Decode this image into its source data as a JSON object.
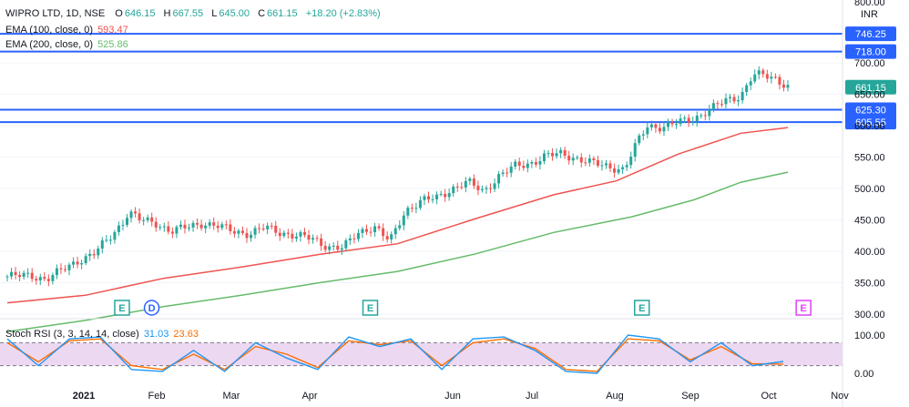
{
  "legend": {
    "symbol": "WIPRO LTD, 1D, NSE",
    "o_label": "O",
    "o_value": "646.15",
    "h_label": "H",
    "h_value": "667.55",
    "l_label": "L",
    "l_value": "645.00",
    "c_label": "C",
    "c_value": "661.15",
    "change": "+18.20 (+2.83%)",
    "ema100_label": "EMA (100, close, 0)",
    "ema100_value": "593.47",
    "ema200_label": "EMA (200, close, 0)",
    "ema200_value": "525.86",
    "stoch_label": "Stoch RSI (3, 3, 14, 14, close)",
    "stoch_k": "31.03",
    "stoch_d": "23.63"
  },
  "currency": "INR",
  "colors": {
    "up": "#26a69a",
    "down": "#ef5350",
    "level": "#2962ff",
    "ema100": "#ef5350",
    "ema200": "#66bb6a",
    "stoch_k": "#2196f3",
    "stoch_d": "#ff6d00",
    "stoch_band": "#e1bee7",
    "earnings": "#26a69a",
    "dividend": "#2962ff",
    "earnings_future": "#e040fb"
  },
  "chart_data": {
    "type": "candlestick",
    "price_axis": {
      "ticks": [
        300,
        350,
        400,
        450,
        500,
        550,
        600,
        650,
        700,
        800
      ],
      "tick_labels": [
        "300.00",
        "350.00",
        "400.00",
        "450.00",
        "500.00",
        "550.00",
        "600.00",
        "650.00",
        "700.00",
        "800.00"
      ],
      "ylim": [
        295,
        810
      ]
    },
    "time_axis": {
      "labels": [
        "2021",
        "Feb",
        "Mar",
        "Apr",
        "Jun",
        "Jul",
        "Aug",
        "Sep",
        "Oct",
        "Nov"
      ]
    },
    "levels": [
      {
        "label": "746.25",
        "value": 746.25
      },
      {
        "label": "718.00",
        "value": 718.0
      },
      {
        "label": "625.30",
        "value": 625.3
      },
      {
        "label": "605.55",
        "value": 605.55
      }
    ],
    "last_price": {
      "label": "661.15",
      "value": 661.15
    },
    "close_path": [
      [
        0,
        360
      ],
      [
        0.03,
        362
      ],
      [
        0.05,
        355
      ],
      [
        0.07,
        370
      ],
      [
        0.09,
        385
      ],
      [
        0.11,
        395
      ],
      [
        0.13,
        420
      ],
      [
        0.15,
        450
      ],
      [
        0.155,
        463
      ],
      [
        0.17,
        450
      ],
      [
        0.19,
        445
      ],
      [
        0.21,
        432
      ],
      [
        0.23,
        438
      ],
      [
        0.25,
        445
      ],
      [
        0.27,
        440
      ],
      [
        0.29,
        432
      ],
      [
        0.31,
        428
      ],
      [
        0.33,
        438
      ],
      [
        0.35,
        430
      ],
      [
        0.37,
        425
      ],
      [
        0.39,
        420
      ],
      [
        0.41,
        408
      ],
      [
        0.43,
        405
      ],
      [
        0.45,
        430
      ],
      [
        0.47,
        440
      ],
      [
        0.49,
        415
      ],
      [
        0.51,
        465
      ],
      [
        0.53,
        480
      ],
      [
        0.55,
        485
      ],
      [
        0.57,
        500
      ],
      [
        0.59,
        510
      ],
      [
        0.61,
        495
      ],
      [
        0.63,
        520
      ],
      [
        0.65,
        535
      ],
      [
        0.67,
        540
      ],
      [
        0.69,
        552
      ],
      [
        0.71,
        555
      ],
      [
        0.73,
        548
      ],
      [
        0.75,
        540
      ],
      [
        0.77,
        535
      ],
      [
        0.79,
        530
      ],
      [
        0.81,
        580
      ],
      [
        0.82,
        600
      ],
      [
        0.84,
        598
      ],
      [
        0.86,
        605
      ],
      [
        0.88,
        612
      ],
      [
        0.9,
        625
      ],
      [
        0.92,
        640
      ],
      [
        0.94,
        648
      ],
      [
        0.955,
        680
      ],
      [
        0.97,
        680
      ],
      [
        0.985,
        675
      ],
      [
        1.0,
        662
      ]
    ],
    "ema100_path": [
      [
        0,
        318
      ],
      [
        0.1,
        330
      ],
      [
        0.2,
        357
      ],
      [
        0.3,
        375
      ],
      [
        0.4,
        395
      ],
      [
        0.5,
        412
      ],
      [
        0.6,
        452
      ],
      [
        0.7,
        490
      ],
      [
        0.78,
        512
      ],
      [
        0.86,
        555
      ],
      [
        0.94,
        588
      ],
      [
        1.0,
        597
      ]
    ],
    "ema200_path": [
      [
        0,
        272
      ],
      [
        0.1,
        290
      ],
      [
        0.2,
        312
      ],
      [
        0.3,
        330
      ],
      [
        0.4,
        350
      ],
      [
        0.5,
        368
      ],
      [
        0.6,
        396
      ],
      [
        0.7,
        430
      ],
      [
        0.8,
        455
      ],
      [
        0.88,
        482
      ],
      [
        0.94,
        510
      ],
      [
        1.0,
        526
      ]
    ],
    "events": [
      {
        "label": "E",
        "kind": "earnings",
        "pos": 0.147
      },
      {
        "label": "D",
        "kind": "dividend",
        "pos": 0.185
      },
      {
        "label": "E",
        "kind": "earnings",
        "pos": 0.465
      },
      {
        "label": "E",
        "kind": "earnings",
        "pos": 0.813
      },
      {
        "label": "E",
        "kind": "earnings_future",
        "pos": 1.02
      }
    ],
    "stoch_rsi": {
      "ticks": [
        0,
        100
      ],
      "tick_labels": [
        "0.00",
        "100.00"
      ],
      "bands": [
        20,
        80
      ],
      "k_path": [
        [
          0,
          90
        ],
        [
          0.04,
          20
        ],
        [
          0.08,
          90
        ],
        [
          0.12,
          95
        ],
        [
          0.16,
          10
        ],
        [
          0.2,
          5
        ],
        [
          0.24,
          60
        ],
        [
          0.28,
          5
        ],
        [
          0.32,
          80
        ],
        [
          0.36,
          40
        ],
        [
          0.4,
          10
        ],
        [
          0.44,
          95
        ],
        [
          0.48,
          70
        ],
        [
          0.52,
          90
        ],
        [
          0.56,
          10
        ],
        [
          0.6,
          90
        ],
        [
          0.64,
          95
        ],
        [
          0.68,
          60
        ],
        [
          0.72,
          5
        ],
        [
          0.76,
          0
        ],
        [
          0.8,
          100
        ],
        [
          0.84,
          90
        ],
        [
          0.88,
          30
        ],
        [
          0.92,
          80
        ],
        [
          0.96,
          20
        ],
        [
          1.0,
          31
        ]
      ],
      "d_path": [
        [
          0,
          80
        ],
        [
          0.04,
          30
        ],
        [
          0.08,
          85
        ],
        [
          0.12,
          90
        ],
        [
          0.16,
          20
        ],
        [
          0.2,
          10
        ],
        [
          0.24,
          50
        ],
        [
          0.28,
          10
        ],
        [
          0.32,
          70
        ],
        [
          0.36,
          50
        ],
        [
          0.4,
          15
        ],
        [
          0.44,
          85
        ],
        [
          0.48,
          75
        ],
        [
          0.52,
          85
        ],
        [
          0.56,
          20
        ],
        [
          0.6,
          80
        ],
        [
          0.64,
          90
        ],
        [
          0.68,
          65
        ],
        [
          0.72,
          10
        ],
        [
          0.76,
          5
        ],
        [
          0.8,
          90
        ],
        [
          0.84,
          85
        ],
        [
          0.88,
          35
        ],
        [
          0.92,
          70
        ],
        [
          0.96,
          25
        ],
        [
          1.0,
          24
        ]
      ]
    }
  }
}
